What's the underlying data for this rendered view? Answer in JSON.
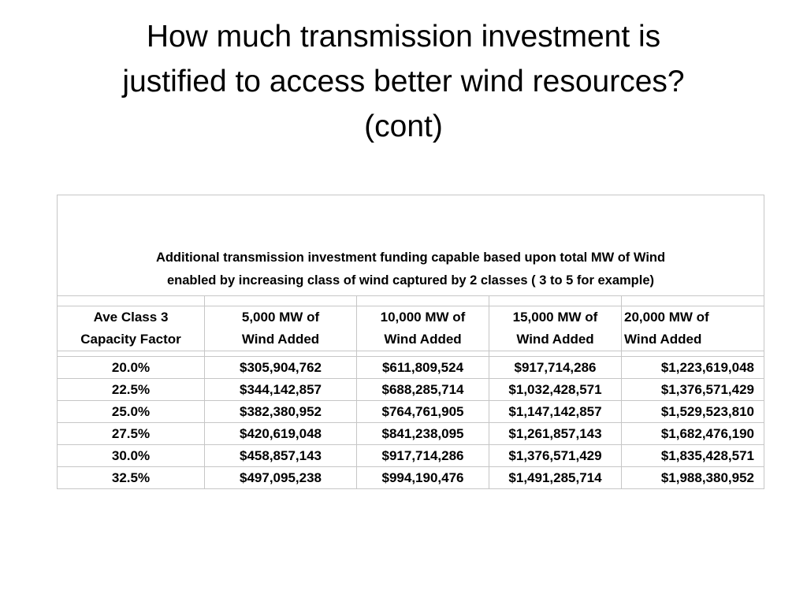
{
  "slide": {
    "title_lines": [
      "How much transmission investment is",
      "justified to access better wind resources?",
      "(cont)"
    ]
  },
  "table": {
    "caption_lines": [
      "Additional transmission investment funding capable based upon total MW of Wind",
      "enabled by increasing class of wind captured by 2 classes ( 3 to 5 for example)"
    ],
    "headers": [
      [
        "Ave Class 3",
        "Capacity Factor"
      ],
      [
        "5,000 MW of",
        "Wind Added"
      ],
      [
        "10,000 MW of",
        "Wind Added"
      ],
      [
        "15,000 MW of",
        "Wind Added"
      ],
      [
        "20,000 MW of",
        "Wind Added"
      ]
    ],
    "rows": [
      [
        "20.0%",
        "$305,904,762",
        "$611,809,524",
        "$917,714,286",
        "$1,223,619,048"
      ],
      [
        "22.5%",
        "$344,142,857",
        "$688,285,714",
        "$1,032,428,571",
        "$1,376,571,429"
      ],
      [
        "25.0%",
        "$382,380,952",
        "$764,761,905",
        "$1,147,142,857",
        "$1,529,523,810"
      ],
      [
        "27.5%",
        "$420,619,048",
        "$841,238,095",
        "$1,261,857,143",
        "$1,682,476,190"
      ],
      [
        "30.0%",
        "$458,857,143",
        "$917,714,286",
        "$1,376,571,429",
        "$1,835,428,571"
      ],
      [
        "32.5%",
        "$497,095,238",
        "$994,190,476",
        "$1,491,285,714",
        "$1,988,380,952"
      ]
    ]
  }
}
